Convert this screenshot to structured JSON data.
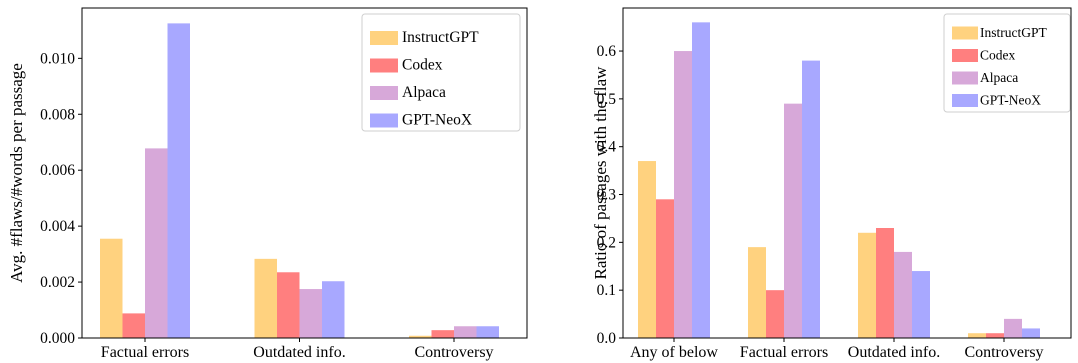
{
  "chart_data": [
    {
      "type": "bar",
      "title": "",
      "xlabel": "",
      "ylabel": "Avg. #flaws/#words per passage",
      "categories": [
        "Factual errors",
        "Outdated info.",
        "Controversy"
      ],
      "ylim": [
        0,
        0.0118
      ],
      "yticks": [
        "0.000",
        "0.002",
        "0.004",
        "0.006",
        "0.008",
        "0.010"
      ],
      "ytick_values": [
        0,
        0.002,
        0.004,
        0.006,
        0.008,
        0.01
      ],
      "grid": false,
      "legend_position": "top-right",
      "series": [
        {
          "name": "InstructGPT",
          "color": "#FFD27F",
          "values": [
            0.00355,
            0.00283,
            8e-05
          ]
        },
        {
          "name": "Codex",
          "color": "#FF7F7F",
          "values": [
            0.00088,
            0.00235,
            0.00028
          ]
        },
        {
          "name": "Alpaca",
          "color": "#D7A8D9",
          "values": [
            0.00678,
            0.00175,
            0.00042
          ]
        },
        {
          "name": "GPT-NeoX",
          "color": "#A8A8FF",
          "values": [
            0.01125,
            0.00203,
            0.00042
          ]
        }
      ]
    },
    {
      "type": "bar",
      "title": "",
      "xlabel": "",
      "ylabel": "Ratio of passages with the flaw",
      "categories": [
        "Any of below",
        "Factual errors",
        "Outdated info.",
        "Controversy"
      ],
      "ylim": [
        0,
        0.69
      ],
      "yticks": [
        "0.0",
        "0.1",
        "0.2",
        "0.3",
        "0.4",
        "0.5",
        "0.6"
      ],
      "ytick_values": [
        0,
        0.1,
        0.2,
        0.3,
        0.4,
        0.5,
        0.6
      ],
      "grid": false,
      "legend_position": "top-right",
      "series": [
        {
          "name": "InstructGPT",
          "color": "#FFD27F",
          "values": [
            0.37,
            0.19,
            0.22,
            0.01
          ]
        },
        {
          "name": "Codex",
          "color": "#FF7F7F",
          "values": [
            0.29,
            0.1,
            0.23,
            0.01
          ]
        },
        {
          "name": "Alpaca",
          "color": "#D7A8D9",
          "values": [
            0.6,
            0.49,
            0.18,
            0.04
          ]
        },
        {
          "name": "GPT-NeoX",
          "color": "#A8A8FF",
          "values": [
            0.66,
            0.58,
            0.14,
            0.02
          ]
        }
      ]
    }
  ]
}
